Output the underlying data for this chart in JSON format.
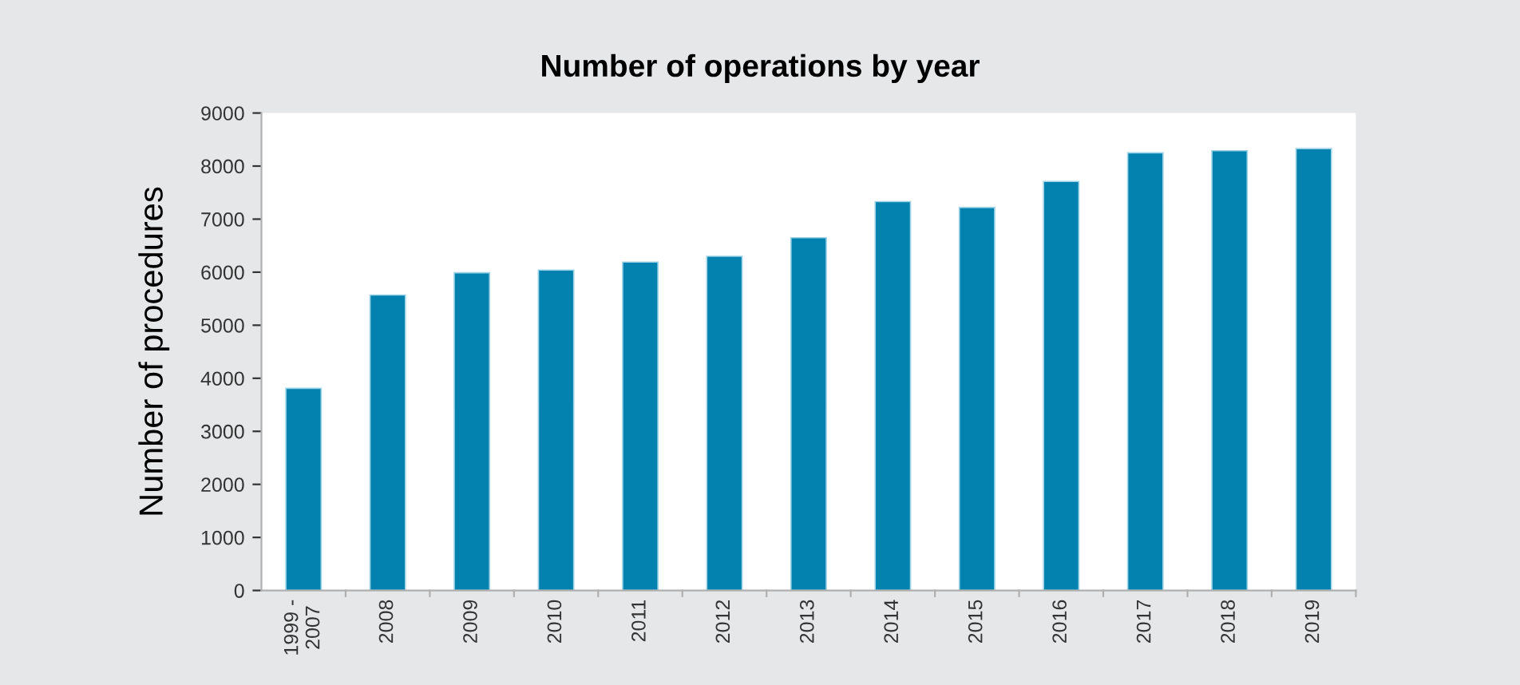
{
  "chart_data": {
    "type": "bar",
    "title": "Number of operations by year",
    "ylabel": "Number of procedures",
    "categories": [
      "1999 -\n2007",
      "2008",
      "2009",
      "2010",
      "2011",
      "2012",
      "2013",
      "2014",
      "2015",
      "2016",
      "2017",
      "2018",
      "2019"
    ],
    "values": [
      3810,
      5570,
      5990,
      6040,
      6190,
      6300,
      6650,
      7330,
      7220,
      7710,
      8250,
      8290,
      8330
    ],
    "color": "#0382b0",
    "ylim": [
      0,
      9000
    ],
    "yticks": [
      0,
      1000,
      2000,
      3000,
      4000,
      5000,
      6000,
      7000,
      8000,
      9000
    ],
    "grid": false
  }
}
